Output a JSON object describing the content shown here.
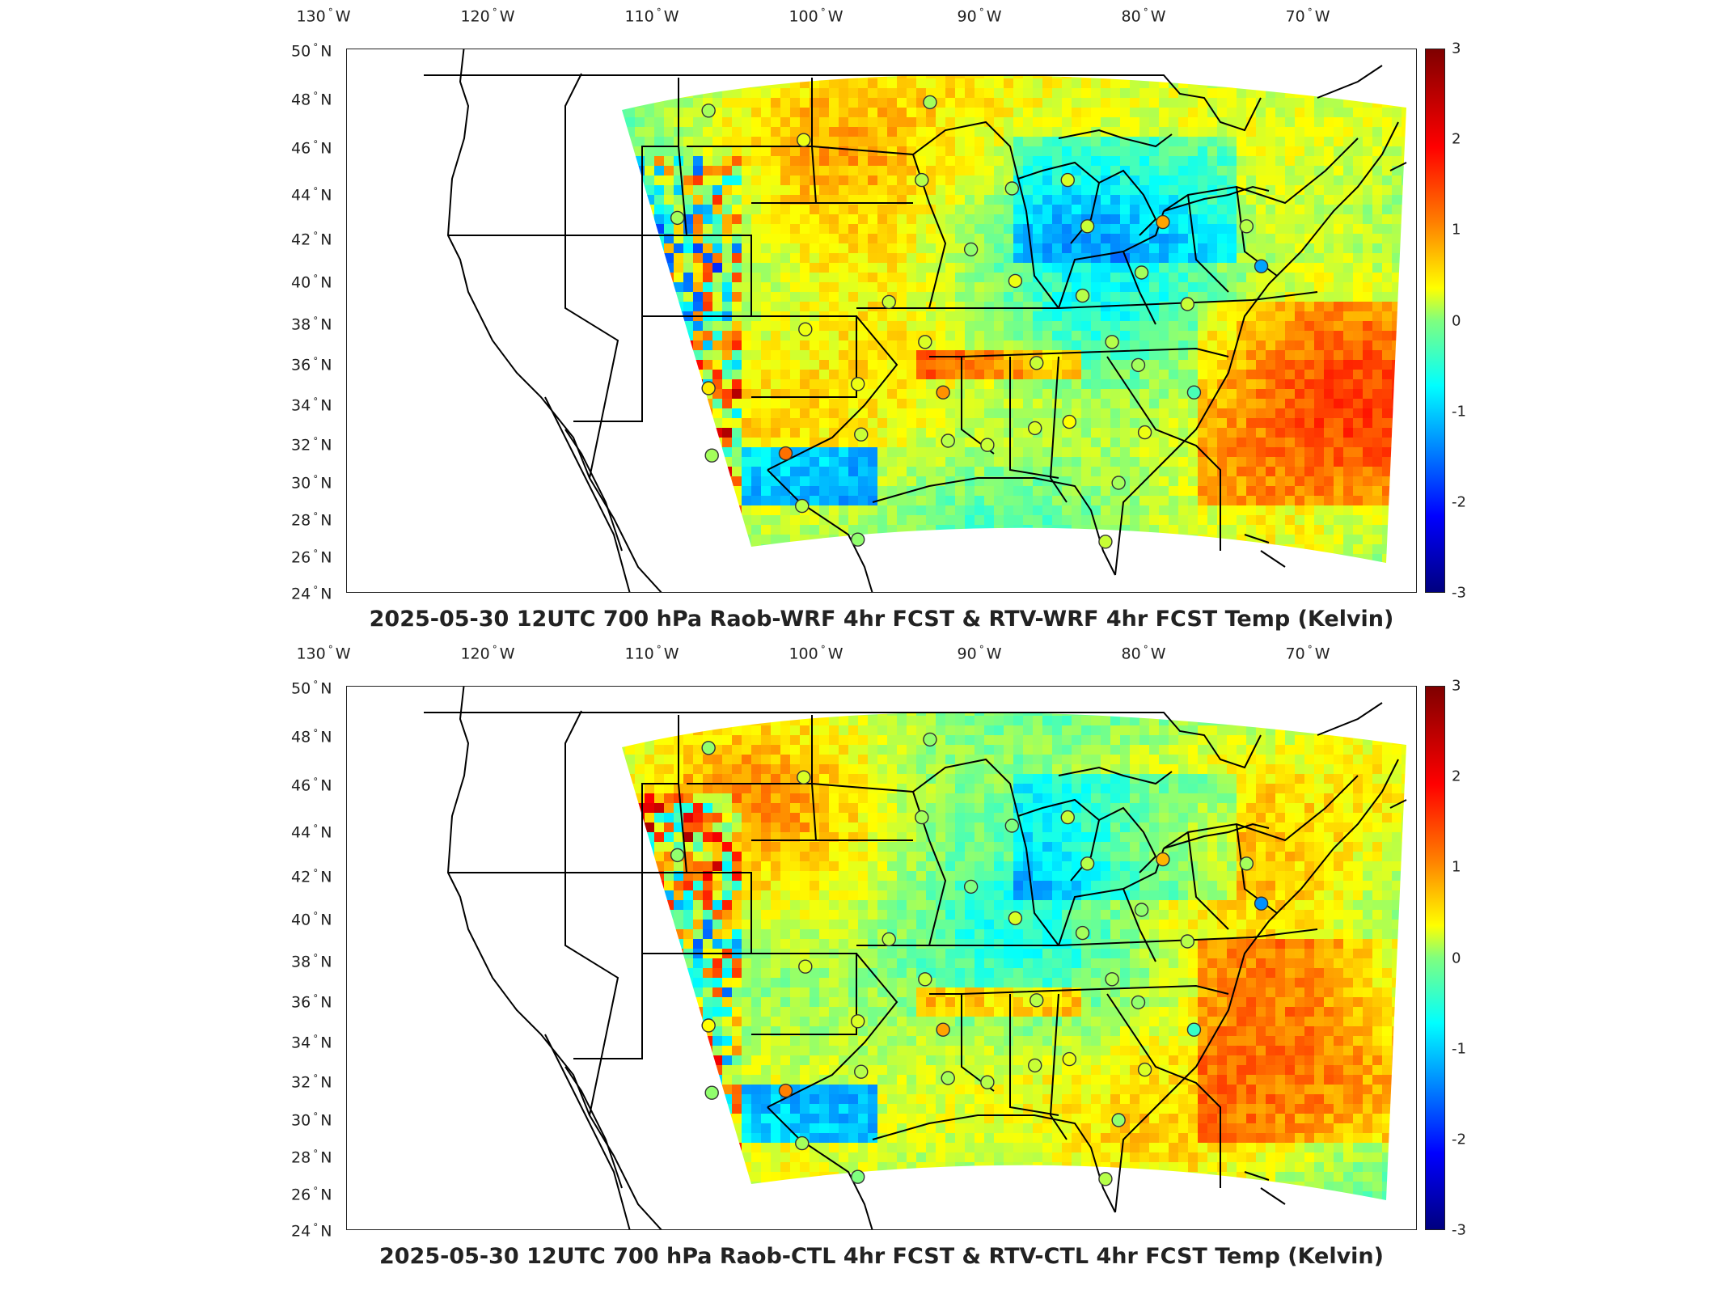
{
  "colors": {
    "land_outline": "#000000",
    "field_low": "#00007f",
    "field_high": "#7f0000"
  },
  "lon_labels": [
    "130",
    "120",
    "110",
    "100",
    "90",
    "80",
    "70"
  ],
  "lon_suffix": "W",
  "lat_labels": [
    "50",
    "48",
    "46",
    "44",
    "42",
    "40",
    "38",
    "36",
    "34",
    "32",
    "30",
    "28",
    "26",
    "24"
  ],
  "lat_suffix": "N",
  "colorbar": {
    "ticks": [
      "3",
      "2",
      "1",
      "0",
      "-1",
      "-2",
      "-3"
    ],
    "min": -3,
    "max": 3
  },
  "panels": [
    {
      "id": "top",
      "title": "2025-05-30 12UTC 700 hPa Raob-WRF 4hr FCST & RTV-WRF 4hr FCST Temp (Kelvin)"
    },
    {
      "id": "bottom",
      "title": "2025-05-30 12UTC 700 hPa Raob-CTL 4hr FCST & RTV-CTL 4hr FCST Temp (Kelvin)"
    }
  ],
  "stations": [
    {
      "lon": -106.6,
      "lat": 48.2,
      "value": 0.2
    },
    {
      "lon": -100.8,
      "lat": 46.8,
      "value": 0.6
    },
    {
      "lon": -93.6,
      "lat": 44.9,
      "value": 0.3
    },
    {
      "lon": -93.1,
      "lat": 48.6,
      "value": 0.2
    },
    {
      "lon": -88.1,
      "lat": 44.5,
      "value": 0.1
    },
    {
      "lon": -84.7,
      "lat": 44.9,
      "value": 0.5
    },
    {
      "lon": -83.5,
      "lat": 42.7,
      "value": 0.4
    },
    {
      "lon": -78.9,
      "lat": 42.9,
      "value": 1.2
    },
    {
      "lon": -73.8,
      "lat": 42.7,
      "value": 0.3
    },
    {
      "lon": -72.9,
      "lat": 40.8,
      "value": -1.2
    },
    {
      "lon": -90.6,
      "lat": 41.6,
      "value": 0.1
    },
    {
      "lon": -87.9,
      "lat": 40.1,
      "value": 0.6
    },
    {
      "lon": -83.8,
      "lat": 39.4,
      "value": 0.3
    },
    {
      "lon": -80.2,
      "lat": 40.5,
      "value": 0.2
    },
    {
      "lon": -77.4,
      "lat": 39.0,
      "value": 0.4
    },
    {
      "lon": -108.5,
      "lat": 43.1,
      "value": 0.2
    },
    {
      "lon": -95.6,
      "lat": 39.1,
      "value": 0.4
    },
    {
      "lon": -100.7,
      "lat": 37.8,
      "value": 0.6
    },
    {
      "lon": -93.4,
      "lat": 37.2,
      "value": 0.5
    },
    {
      "lon": -86.6,
      "lat": 36.2,
      "value": 0.4
    },
    {
      "lon": -82.0,
      "lat": 37.2,
      "value": 0.3
    },
    {
      "lon": -80.4,
      "lat": 36.1,
      "value": 0.2
    },
    {
      "lon": -106.6,
      "lat": 35.0,
      "value": 0.8
    },
    {
      "lon": -97.5,
      "lat": 35.2,
      "value": 0.6
    },
    {
      "lon": -92.3,
      "lat": 34.8,
      "value": 1.3
    },
    {
      "lon": -77.0,
      "lat": 34.8,
      "value": -0.3
    },
    {
      "lon": -97.3,
      "lat": 32.8,
      "value": 0.4
    },
    {
      "lon": -101.9,
      "lat": 31.9,
      "value": 1.5
    },
    {
      "lon": -106.4,
      "lat": 31.8,
      "value": 0.2
    },
    {
      "lon": -92.0,
      "lat": 32.5,
      "value": 0.3
    },
    {
      "lon": -89.6,
      "lat": 32.3,
      "value": 0.4
    },
    {
      "lon": -86.7,
      "lat": 33.1,
      "value": 0.5
    },
    {
      "lon": -84.6,
      "lat": 33.4,
      "value": 0.7
    },
    {
      "lon": -80.0,
      "lat": 32.9,
      "value": 0.6
    },
    {
      "lon": -100.9,
      "lat": 29.4,
      "value": 0.3
    },
    {
      "lon": -97.5,
      "lat": 27.8,
      "value": 0.1
    },
    {
      "lon": -81.6,
      "lat": 30.5,
      "value": 0.2
    },
    {
      "lon": -82.4,
      "lat": 27.7,
      "value": 0.4
    }
  ]
}
